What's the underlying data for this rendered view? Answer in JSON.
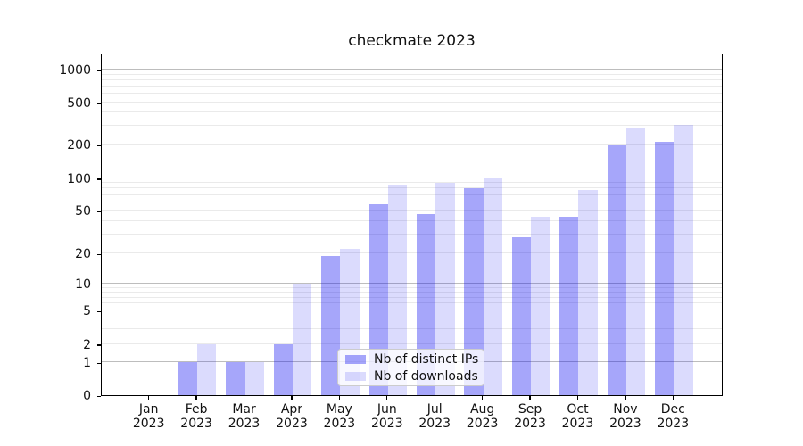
{
  "title": "checkmate 2023",
  "chart_data": {
    "type": "bar",
    "title": "checkmate 2023",
    "xlabel": "",
    "ylabel": "",
    "categories": [
      "Jan 2023",
      "Feb 2023",
      "Mar 2023",
      "Apr 2023",
      "May 2023",
      "Jun 2023",
      "Jul 2023",
      "Aug 2023",
      "Sep 2023",
      "Oct 2023",
      "Nov 2023",
      "Dec 2023"
    ],
    "series": [
      {
        "name": "Nb of distinct IPs",
        "color": "rgba(0,0,240,0.35)",
        "color_on_white": "#a6a6f9",
        "values": [
          0,
          1,
          1,
          2,
          19,
          57,
          47,
          80,
          28,
          44,
          196,
          215
        ]
      },
      {
        "name": "Nb of downloads",
        "color": "rgba(0,0,240,0.14)",
        "color_on_white": "#dbdbfc",
        "values": [
          0,
          2,
          1,
          10,
          22,
          87,
          91,
          101,
          44,
          78,
          292,
          310
        ]
      }
    ],
    "y_axis": {
      "scale": "symlog",
      "ticks": [
        0,
        1,
        2,
        5,
        10,
        20,
        50,
        100,
        200,
        500,
        1000
      ],
      "minor_gridlines": [
        2,
        3,
        4,
        5,
        6,
        7,
        8,
        9,
        20,
        30,
        40,
        50,
        60,
        70,
        80,
        90,
        200,
        300,
        400,
        500,
        600,
        700,
        800,
        900
      ],
      "major_gridlines": [
        1,
        10,
        100,
        1000
      ]
    },
    "grid": true,
    "legend_position": "lower center inside plot"
  },
  "legend": {
    "entries": [
      "Nb of distinct IPs",
      "Nb of downloads"
    ]
  },
  "colors": {
    "bar_distinct_ips": "#a6a6f9",
    "bar_downloads": "#dbdbfc",
    "grid_major": "#bdbdbd",
    "grid_minor": "#eaeaea",
    "spine": "#000000",
    "legend_border": "#cccccc"
  }
}
